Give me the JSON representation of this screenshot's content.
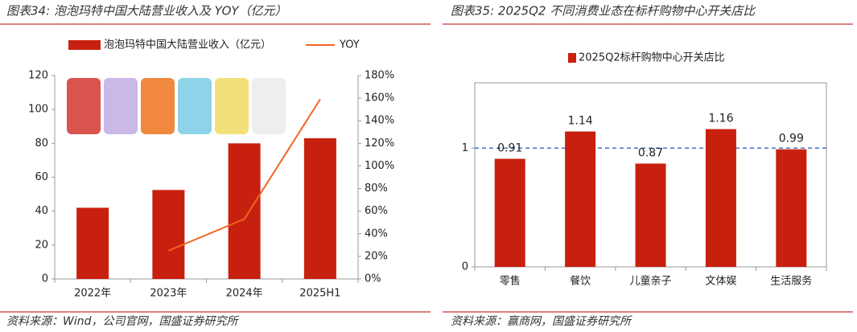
{
  "chart_data": [
    {
      "type": "bar",
      "title": "图表34:  泡泡玛特中国大陆营业收入及 YOY（亿元）",
      "categories": [
        "2022年",
        "2023年",
        "2024年",
        "2025H1"
      ],
      "series": [
        {
          "name": "泡泡玛特中国大陆营业收入（亿元）",
          "type": "bar",
          "color": "#c8200e",
          "values": [
            42,
            52.5,
            80,
            83
          ]
        },
        {
          "name": "YOY",
          "type": "line",
          "axis": "y2",
          "color": "#f26522",
          "values": [
            null,
            25,
            53,
            159
          ]
        }
      ],
      "ylim": [
        0,
        120
      ],
      "yticks": [
        0,
        20,
        40,
        60,
        80,
        100,
        120
      ],
      "y2lim": [
        0,
        180
      ],
      "y2ticks": [
        {
          "value": 0,
          "label": "0%"
        },
        {
          "value": 20,
          "label": "20%"
        },
        {
          "value": 40,
          "label": "40%"
        },
        {
          "value": 60,
          "label": "60%"
        },
        {
          "value": 80,
          "label": "80%"
        },
        {
          "value": 100,
          "label": "100%"
        },
        {
          "value": 120,
          "label": "120%"
        },
        {
          "value": 140,
          "label": "140%"
        },
        {
          "value": 160,
          "label": "160%"
        },
        {
          "value": 180,
          "label": "180%"
        }
      ],
      "source": "资料来源：Wind，公司官网，国盛证券研究所"
    },
    {
      "type": "bar",
      "title": "图表35:  2025Q2 不同消费业态在标杆购物中心开关店比",
      "categories": [
        "零售",
        "餐饮",
        "儿童亲子",
        "文体娱",
        "生活服务"
      ],
      "series": [
        {
          "name": "2025Q2标杆购物中心开关店比",
          "type": "bar",
          "color": "#c8200e",
          "values": [
            0.91,
            1.14,
            0.87,
            1.16,
            0.99
          ]
        }
      ],
      "data_labels": true,
      "ylim": [
        0,
        1.55
      ],
      "yticks": [
        0,
        1
      ],
      "reference_line": 1,
      "reference_color": "#4472c4",
      "source": "资料来源：赢商网，国盛证券研究所"
    }
  ]
}
